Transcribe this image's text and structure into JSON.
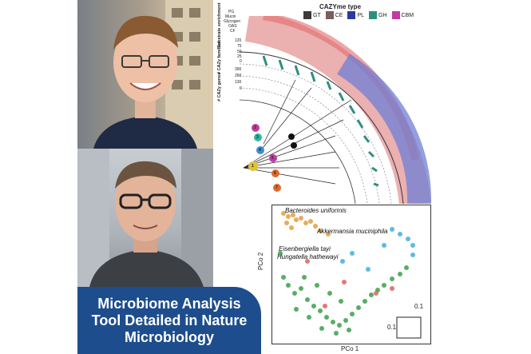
{
  "banner": {
    "title": "Microbiome Analysis Tool Detailed in Nature Microbiology"
  },
  "figure": {
    "legend_title": "CAZYme type",
    "legend_items": [
      {
        "label": "GT",
        "color": "#3a3a3a"
      },
      {
        "label": "CE",
        "color": "#7a5f5a"
      },
      {
        "label": "PL",
        "color": "#2a3a9a"
      },
      {
        "label": "GH",
        "color": "#2f8f7f"
      },
      {
        "label": "CBM",
        "color": "#c23aa8"
      }
    ],
    "track_labels": {
      "substrate_enrichment": "Substrate enrichment",
      "cazy_families": "# CAZy families",
      "cazy_genes": "# CAZy genes"
    },
    "substrates": [
      "PG",
      "Mucin",
      "Glycogen",
      "OAS",
      "CF"
    ],
    "family_ticks": [
      "120",
      "75",
      "50",
      "25",
      "0"
    ],
    "gene_ticks": [
      "390",
      "260",
      "130",
      "0"
    ],
    "clade_numbers": [
      "1",
      "2",
      "3",
      "4",
      "5",
      "6",
      "7",
      "8"
    ]
  },
  "pcoa": {
    "xlabel": "PCo 1",
    "ylabel": "PCo 2",
    "scale_label_top": "0.1",
    "scale_label_left": "0.1",
    "species": [
      "Bacteroides uniformis",
      "Akkermansia muciniphila",
      "Eisenbergiella tayi",
      "Hungatella hathewayi"
    ]
  }
}
